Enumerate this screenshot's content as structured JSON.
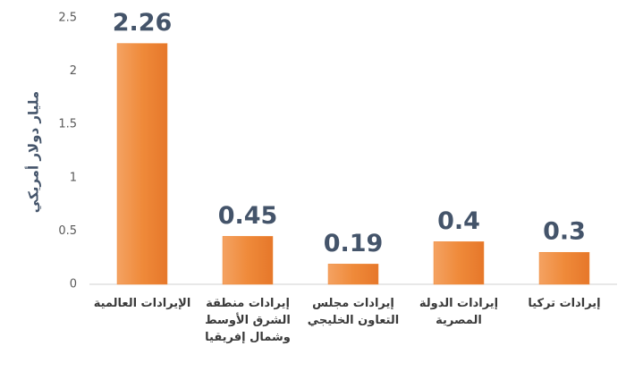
{
  "chart_data": {
    "type": "bar",
    "y_label": "مليار دولار أمريكي",
    "categories": [
      "الإيرادات العالمية",
      "إيرادات منطقة\nالشرق الأوسط\nوشمال إفريقيا",
      "إيرادات مجلس\nالتعاون الخليجي",
      "إيرادات الدولة\nالمصرية",
      "إيرادات تركيا"
    ],
    "values": [
      2.26,
      0.45,
      0.19,
      0.4,
      0.3
    ],
    "color": "#ef8a3a",
    "ylim": [
      0,
      2.5
    ],
    "yticks": [
      0,
      0.5,
      1,
      1.5,
      2,
      2.5
    ],
    "grid": false
  }
}
